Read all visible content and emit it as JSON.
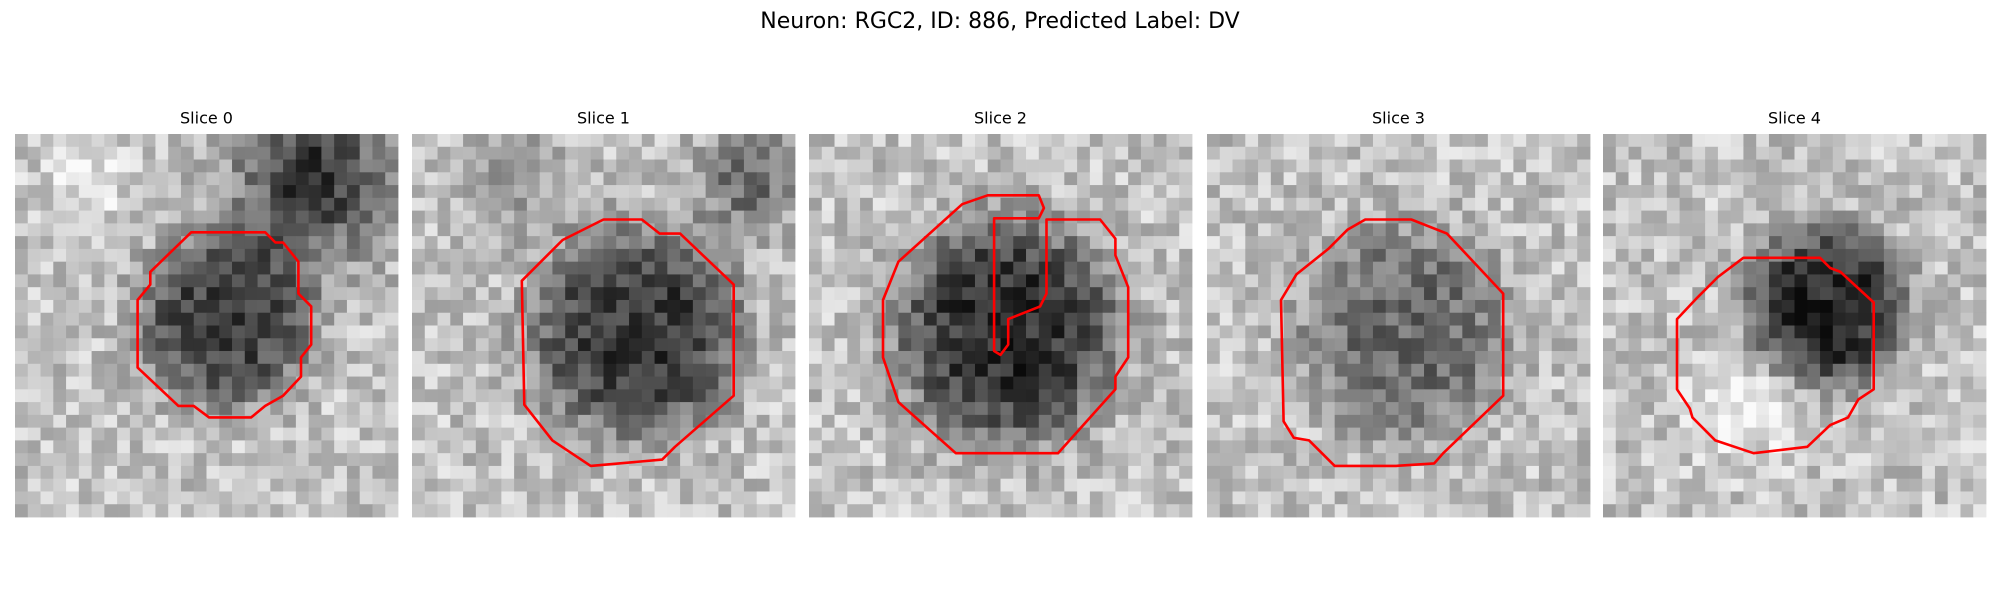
{
  "title": "Neuron: RGC2, ID: 886, Predicted Label: DV",
  "panels": [
    {
      "title": "Slice 0"
    },
    {
      "title": "Slice 1"
    },
    {
      "title": "Slice 2"
    },
    {
      "title": "Slice 3"
    },
    {
      "title": "Slice 4"
    }
  ]
}
